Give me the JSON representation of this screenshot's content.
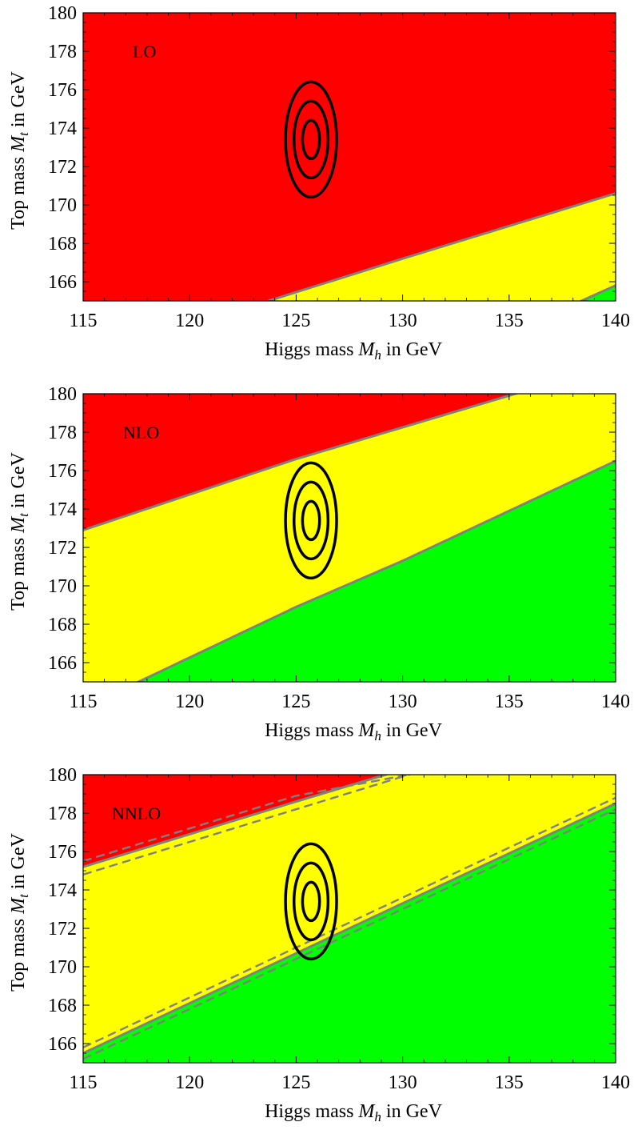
{
  "chart_data": [
    {
      "type": "area",
      "panel_label": "LO",
      "xlabel": "Higgs mass M_h in GeV",
      "ylabel": "Top mass M_t in GeV",
      "xlabel_parts": [
        "Higgs mass ",
        "M",
        "h",
        " in GeV"
      ],
      "ylabel_parts": [
        "Top mass ",
        "M",
        "t",
        " in GeV"
      ],
      "xlim": [
        115,
        140
      ],
      "ylim": [
        165,
        180
      ],
      "x_ticks": [
        115,
        120,
        125,
        130,
        135,
        140
      ],
      "y_ticks": [
        166,
        168,
        170,
        172,
        174,
        176,
        178,
        180
      ],
      "colors": {
        "red": "#ff0000",
        "yellow": "#ffff00",
        "green": "#00ff00",
        "boundary": "#808080",
        "ellipse": "#000000"
      },
      "regions_background": "red",
      "boundaries": [
        {
          "name": "",
          "style": "solid",
          "region_below": "yellow",
          "x": [
            123.7,
            130,
            135,
            140
          ],
          "y": [
            165,
            167.2,
            168.9,
            170.6
          ]
        },
        {
          "name": "",
          "style": "solid",
          "region_below": "green",
          "x": [
            138.4,
            140
          ],
          "y": [
            165,
            165.8
          ]
        }
      ],
      "ellipses": {
        "center": [
          125.7,
          173.4
        ],
        "semi_axes": [
          [
            0.4,
            1.0
          ],
          [
            0.8,
            2.0
          ],
          [
            1.2,
            3.0
          ]
        ]
      }
    },
    {
      "type": "area",
      "panel_label": "NLO",
      "xlabel": "Higgs mass M_h in GeV",
      "ylabel": "Top mass M_t in GeV",
      "xlabel_parts": [
        "Higgs mass ",
        "M",
        "h",
        " in GeV"
      ],
      "ylabel_parts": [
        "Top mass ",
        "M",
        "t",
        " in GeV"
      ],
      "xlim": [
        115,
        140
      ],
      "ylim": [
        165,
        180
      ],
      "x_ticks": [
        115,
        120,
        125,
        130,
        135,
        140
      ],
      "y_ticks": [
        166,
        168,
        170,
        172,
        174,
        176,
        178,
        180
      ],
      "colors": {
        "red": "#ff0000",
        "yellow": "#ffff00",
        "green": "#00ff00",
        "boundary": "#808080",
        "ellipse": "#000000"
      },
      "regions_background": "red",
      "boundaries": [
        {
          "name": "",
          "style": "solid",
          "region_below": "yellow",
          "x": [
            115,
            125,
            135.3
          ],
          "y": [
            172.9,
            176.6,
            180
          ]
        },
        {
          "name": "",
          "style": "solid",
          "region_below": "green",
          "x": [
            117.6,
            125,
            130,
            140
          ],
          "y": [
            165,
            168.9,
            171.3,
            176.5
          ]
        }
      ],
      "ellipses": {
        "center": [
          125.7,
          173.4
        ],
        "semi_axes": [
          [
            0.4,
            1.0
          ],
          [
            0.8,
            2.0
          ],
          [
            1.2,
            3.0
          ]
        ]
      }
    },
    {
      "type": "area",
      "panel_label": "NNLO",
      "xlabel": "Higgs mass M_h in GeV",
      "ylabel": "Top mass M_t in GeV",
      "xlabel_parts": [
        "Higgs mass ",
        "M",
        "h",
        " in GeV"
      ],
      "ylabel_parts": [
        "Top mass ",
        "M",
        "t",
        " in GeV"
      ],
      "xlim": [
        115,
        140
      ],
      "ylim": [
        165,
        180
      ],
      "x_ticks": [
        115,
        120,
        125,
        130,
        135,
        140
      ],
      "y_ticks": [
        166,
        168,
        170,
        172,
        174,
        176,
        178,
        180
      ],
      "colors": {
        "red": "#ff0000",
        "yellow": "#ffff00",
        "green": "#00ff00",
        "boundary": "#808080",
        "ellipse": "#000000"
      },
      "regions_background": "red",
      "boundaries": [
        {
          "name": "",
          "style": "solid",
          "region_below": "yellow",
          "x": [
            115,
            120,
            125,
            129.2
          ],
          "y": [
            175.2,
            176.9,
            178.6,
            180
          ]
        },
        {
          "name": "",
          "style": "dashed",
          "region_below": null,
          "x": [
            115,
            120,
            125,
            130.3
          ],
          "y": [
            175.5,
            177.2,
            178.9,
            180
          ]
        },
        {
          "name": "",
          "style": "dashed",
          "region_below": null,
          "x": [
            115,
            120,
            125,
            130.3
          ],
          "y": [
            174.8,
            176.5,
            178.2,
            180
          ]
        },
        {
          "name": "",
          "style": "solid",
          "region_below": "green",
          "x": [
            115,
            120,
            125,
            130,
            135,
            140
          ],
          "y": [
            165.5,
            168.1,
            170.7,
            173.3,
            175.9,
            178.5
          ]
        },
        {
          "name": "",
          "style": "dashed",
          "region_below": null,
          "x": [
            115,
            120,
            125,
            130,
            135,
            140
          ],
          "y": [
            165.8,
            168.4,
            171.0,
            173.6,
            176.2,
            178.8
          ]
        },
        {
          "name": "",
          "style": "dashed",
          "region_below": null,
          "x": [
            115,
            120,
            125,
            130,
            135,
            140
          ],
          "y": [
            165.2,
            167.8,
            170.4,
            173.0,
            175.6,
            178.2
          ]
        }
      ],
      "ellipses": {
        "center": [
          125.7,
          173.4
        ],
        "semi_axes": [
          [
            0.4,
            1.0
          ],
          [
            0.8,
            2.0
          ],
          [
            1.2,
            3.0
          ]
        ]
      }
    }
  ]
}
